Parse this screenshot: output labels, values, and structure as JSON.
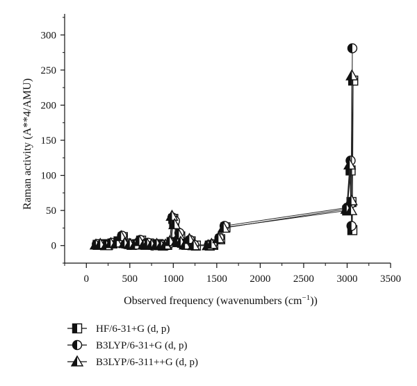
{
  "chart_data": {
    "type": "line",
    "title": "",
    "xlabel": "Observed frequency (wavenumbers (cm",
    "xlabel_sup": "−1",
    "xlabel_suffix": "))",
    "ylabel": "Raman activity (A**4/AMU)",
    "xlim": [
      -250,
      3500
    ],
    "ylim": [
      -25,
      330
    ],
    "xticks": [
      0,
      500,
      1000,
      1500,
      2000,
      2500,
      3000,
      3500
    ],
    "yticks": [
      0,
      50,
      100,
      150,
      200,
      250,
      300
    ],
    "xtick_labels": [
      "0",
      "500",
      "1000",
      "1500",
      "2000",
      "2500",
      "3000",
      "3500"
    ],
    "ytick_labels": [
      "0",
      "50",
      "100",
      "150",
      "200",
      "250",
      "300"
    ],
    "grid": false,
    "legend_position": "bottom-left",
    "series": [
      {
        "name": "HF/6-31+G (d, p)",
        "marker": "square",
        "x": [
          130,
          180,
          250,
          300,
          370,
          420,
          460,
          520,
          580,
          630,
          680,
          720,
          770,
          830,
          880,
          930,
          980,
          1000,
          1010,
          1040,
          1080,
          1100,
          1150,
          1200,
          1260,
          1420,
          1460,
          1540,
          1600,
          3000,
          3040,
          3060,
          3070,
          3050
        ],
        "y": [
          1,
          2,
          1,
          3,
          6,
          12,
          3,
          1,
          2,
          7,
          1,
          3,
          1,
          2,
          0,
          1,
          5,
          38,
          32,
          5,
          13,
          4,
          1,
          6,
          0,
          0,
          1,
          9,
          26,
          50,
          107,
          22,
          235,
          62
        ]
      },
      {
        "name": "B3LYP/6-31+G (d, p)",
        "marker": "circle",
        "x": [
          120,
          170,
          240,
          290,
          360,
          410,
          450,
          510,
          570,
          620,
          670,
          710,
          760,
          820,
          870,
          920,
          970,
          990,
          1020,
          1050,
          1070,
          1090,
          1140,
          1190,
          1240,
          1410,
          1450,
          1530,
          1590,
          3000,
          3040,
          3050,
          3060,
          3045
        ],
        "y": [
          2,
          1,
          2,
          4,
          5,
          14,
          2,
          1,
          1,
          8,
          2,
          4,
          0,
          1,
          1,
          0,
          4,
          40,
          35,
          6,
          18,
          3,
          2,
          8,
          1,
          1,
          2,
          11,
          28,
          54,
          121,
          28,
          281,
          60
        ]
      },
      {
        "name": "B3LYP/6-311++G (d, p)",
        "marker": "triangle",
        "x": [
          110,
          160,
          230,
          280,
          350,
          400,
          440,
          500,
          560,
          610,
          660,
          700,
          750,
          810,
          860,
          910,
          960,
          985,
          1015,
          1045,
          1065,
          1085,
          1135,
          1185,
          1235,
          1400,
          1440,
          1520,
          1580,
          2995,
          3030,
          3045,
          3055,
          3050
        ],
        "y": [
          1,
          2,
          0,
          3,
          4,
          13,
          3,
          2,
          1,
          6,
          1,
          2,
          1,
          2,
          0,
          1,
          6,
          42,
          30,
          7,
          15,
          5,
          1,
          9,
          0,
          0,
          2,
          10,
          25,
          52,
          115,
          50,
          242,
          64
        ]
      }
    ]
  }
}
